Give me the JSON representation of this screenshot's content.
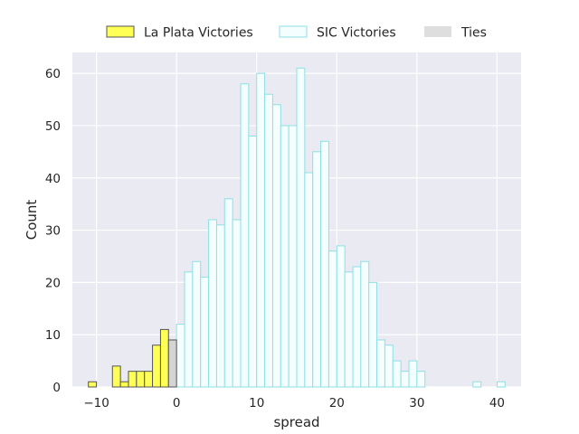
{
  "chart_data": {
    "type": "bar",
    "xlabel": "spread",
    "ylabel": "Count",
    "xlim": [
      -13,
      43
    ],
    "ylim": [
      0,
      64
    ],
    "x_ticks": [
      -10,
      0,
      10,
      20,
      30,
      40
    ],
    "y_ticks": [
      0,
      10,
      20,
      30,
      40,
      50,
      60
    ],
    "grid": true,
    "legend_position": "top",
    "series": [
      {
        "name": "La Plata Victories",
        "fill": "#ffff55",
        "edge": "#555555",
        "bins": [
          {
            "x": -10.5,
            "count": 1
          },
          {
            "x": -7.5,
            "count": 4
          },
          {
            "x": -6.5,
            "count": 1
          },
          {
            "x": -5.5,
            "count": 3
          },
          {
            "x": -4.5,
            "count": 3
          },
          {
            "x": -3.5,
            "count": 3
          },
          {
            "x": -2.5,
            "count": 8
          },
          {
            "x": -1.5,
            "count": 11
          }
        ]
      },
      {
        "name": "SIC Victories",
        "fill": "#f4fefe",
        "edge": "#8edfe4",
        "bins": [
          {
            "x": 0.5,
            "count": 12
          },
          {
            "x": 1.5,
            "count": 22
          },
          {
            "x": 2.5,
            "count": 24
          },
          {
            "x": 3.5,
            "count": 21
          },
          {
            "x": 4.5,
            "count": 32
          },
          {
            "x": 5.5,
            "count": 31
          },
          {
            "x": 6.5,
            "count": 36
          },
          {
            "x": 7.5,
            "count": 32
          },
          {
            "x": 8.5,
            "count": 58
          },
          {
            "x": 9.5,
            "count": 48
          },
          {
            "x": 10.5,
            "count": 60
          },
          {
            "x": 11.5,
            "count": 56
          },
          {
            "x": 12.5,
            "count": 54
          },
          {
            "x": 13.5,
            "count": 50
          },
          {
            "x": 14.5,
            "count": 50
          },
          {
            "x": 15.5,
            "count": 61
          },
          {
            "x": 16.5,
            "count": 41
          },
          {
            "x": 17.5,
            "count": 45
          },
          {
            "x": 18.5,
            "count": 47
          },
          {
            "x": 19.5,
            "count": 26
          },
          {
            "x": 20.5,
            "count": 27
          },
          {
            "x": 21.5,
            "count": 22
          },
          {
            "x": 22.5,
            "count": 23
          },
          {
            "x": 23.5,
            "count": 24
          },
          {
            "x": 24.5,
            "count": 20
          },
          {
            "x": 25.5,
            "count": 9
          },
          {
            "x": 26.5,
            "count": 8
          },
          {
            "x": 27.5,
            "count": 5
          },
          {
            "x": 28.5,
            "count": 3
          },
          {
            "x": 29.5,
            "count": 5
          },
          {
            "x": 30.5,
            "count": 3
          },
          {
            "x": 37.5,
            "count": 1
          },
          {
            "x": 40.5,
            "count": 1
          }
        ]
      },
      {
        "name": "Ties",
        "fill": "#d4d4d4",
        "edge": "#555555",
        "bins": [
          {
            "x": -0.5,
            "count": 9
          }
        ]
      }
    ]
  },
  "colors": {
    "plot_background": "#eaeaf2",
    "grid": "#ffffff",
    "text": "#262626",
    "legend_ties_swatch": "#dedede"
  }
}
